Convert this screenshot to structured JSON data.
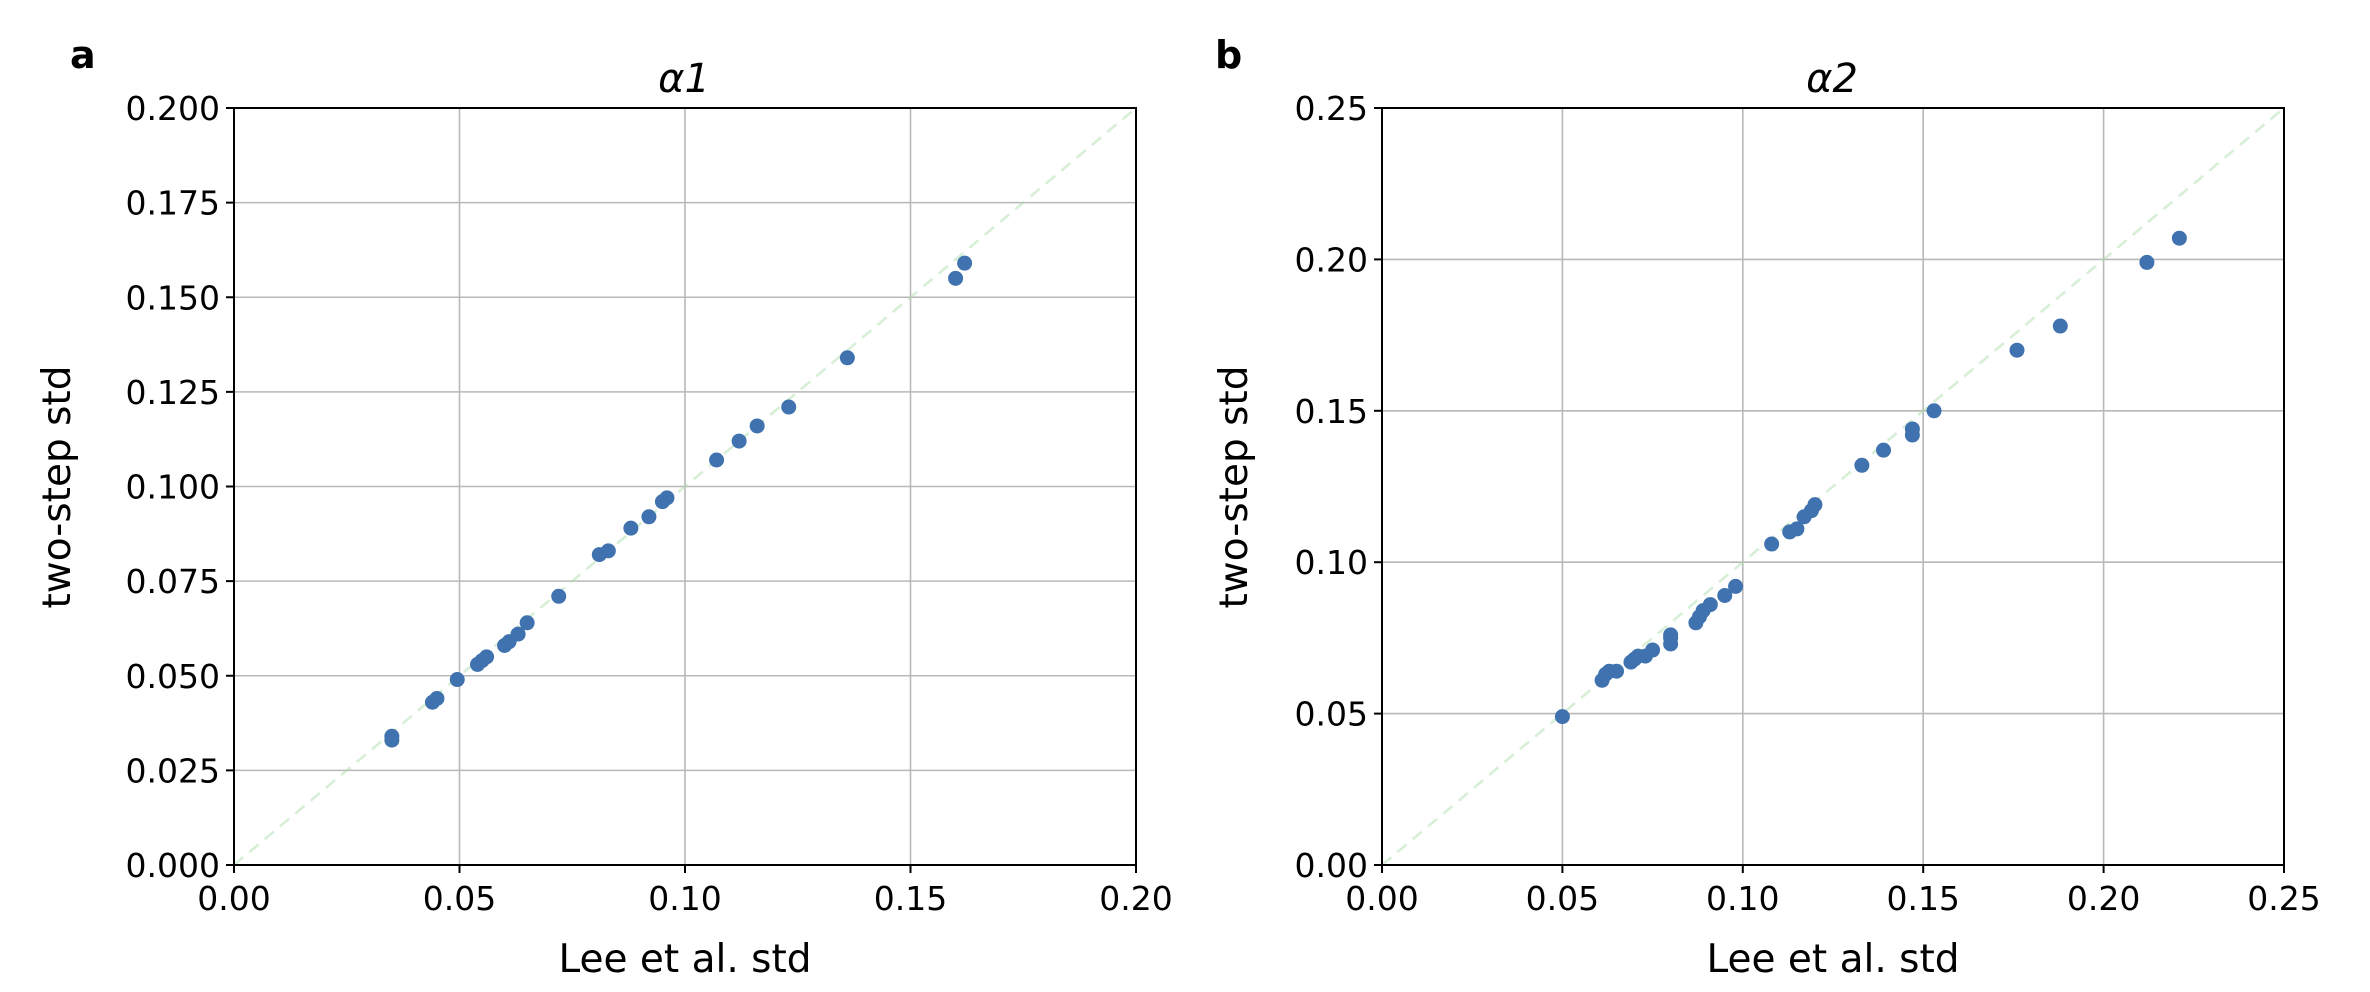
{
  "chart_data": [
    {
      "type": "scatter",
      "panel_label": "a",
      "title": "α1",
      "xlabel": "Lee et al. std",
      "ylabel": "two-step std",
      "xlim": [
        0.0,
        0.2
      ],
      "ylim": [
        0.0,
        0.2
      ],
      "xticks": [
        "0.00",
        "0.05",
        "0.10",
        "0.15",
        "0.20"
      ],
      "yticks": [
        "0.000",
        "0.025",
        "0.050",
        "0.075",
        "0.100",
        "0.125",
        "0.150",
        "0.175",
        "0.200"
      ],
      "xtick_values": [
        0.0,
        0.05,
        0.1,
        0.15,
        0.2
      ],
      "ytick_values": [
        0.0,
        0.025,
        0.05,
        0.075,
        0.1,
        0.125,
        0.15,
        0.175,
        0.2
      ],
      "grid": true,
      "reference_line": {
        "from": [
          0.0,
          0.0
        ],
        "to": [
          0.2,
          0.2
        ],
        "style": "dashed",
        "color": "#a6dca6"
      },
      "marker_color": "#3f72ae",
      "points": [
        [
          0.035,
          0.033
        ],
        [
          0.035,
          0.034
        ],
        [
          0.044,
          0.043
        ],
        [
          0.045,
          0.044
        ],
        [
          0.0495,
          0.049
        ],
        [
          0.054,
          0.053
        ],
        [
          0.055,
          0.054
        ],
        [
          0.056,
          0.055
        ],
        [
          0.06,
          0.058
        ],
        [
          0.061,
          0.059
        ],
        [
          0.063,
          0.061
        ],
        [
          0.065,
          0.064
        ],
        [
          0.072,
          0.071
        ],
        [
          0.081,
          0.082
        ],
        [
          0.083,
          0.083
        ],
        [
          0.088,
          0.089
        ],
        [
          0.092,
          0.092
        ],
        [
          0.095,
          0.096
        ],
        [
          0.096,
          0.097
        ],
        [
          0.107,
          0.107
        ],
        [
          0.112,
          0.112
        ],
        [
          0.116,
          0.116
        ],
        [
          0.123,
          0.121
        ],
        [
          0.136,
          0.134
        ],
        [
          0.16,
          0.155
        ],
        [
          0.162,
          0.159
        ]
      ]
    },
    {
      "type": "scatter",
      "panel_label": "b",
      "title": "α2",
      "xlabel": "Lee et al. std",
      "ylabel": "two-step std",
      "xlim": [
        0.0,
        0.25
      ],
      "ylim": [
        0.0,
        0.25
      ],
      "xticks": [
        "0.00",
        "0.05",
        "0.10",
        "0.15",
        "0.20",
        "0.25"
      ],
      "yticks": [
        "0.00",
        "0.05",
        "0.10",
        "0.15",
        "0.20",
        "0.25"
      ],
      "xtick_values": [
        0.0,
        0.05,
        0.1,
        0.15,
        0.2,
        0.25
      ],
      "ytick_values": [
        0.0,
        0.05,
        0.1,
        0.15,
        0.2,
        0.25
      ],
      "grid": true,
      "reference_line": {
        "from": [
          0.0,
          0.0
        ],
        "to": [
          0.25,
          0.25
        ],
        "style": "dashed",
        "color": "#a6dca6"
      },
      "marker_color": "#3f72ae",
      "points": [
        [
          0.05,
          0.049
        ],
        [
          0.061,
          0.061
        ],
        [
          0.062,
          0.063
        ],
        [
          0.063,
          0.064
        ],
        [
          0.065,
          0.064
        ],
        [
          0.069,
          0.067
        ],
        [
          0.07,
          0.068
        ],
        [
          0.071,
          0.069
        ],
        [
          0.073,
          0.069
        ],
        [
          0.075,
          0.071
        ],
        [
          0.08,
          0.073
        ],
        [
          0.08,
          0.075
        ],
        [
          0.08,
          0.076
        ],
        [
          0.087,
          0.08
        ],
        [
          0.088,
          0.082
        ],
        [
          0.089,
          0.084
        ],
        [
          0.091,
          0.086
        ],
        [
          0.095,
          0.089
        ],
        [
          0.098,
          0.092
        ],
        [
          0.108,
          0.106
        ],
        [
          0.113,
          0.11
        ],
        [
          0.115,
          0.111
        ],
        [
          0.117,
          0.115
        ],
        [
          0.119,
          0.117
        ],
        [
          0.12,
          0.119
        ],
        [
          0.133,
          0.132
        ],
        [
          0.139,
          0.137
        ],
        [
          0.147,
          0.142
        ],
        [
          0.147,
          0.144
        ],
        [
          0.153,
          0.15
        ],
        [
          0.176,
          0.17
        ],
        [
          0.188,
          0.178
        ],
        [
          0.212,
          0.199
        ],
        [
          0.221,
          0.207
        ]
      ]
    }
  ]
}
